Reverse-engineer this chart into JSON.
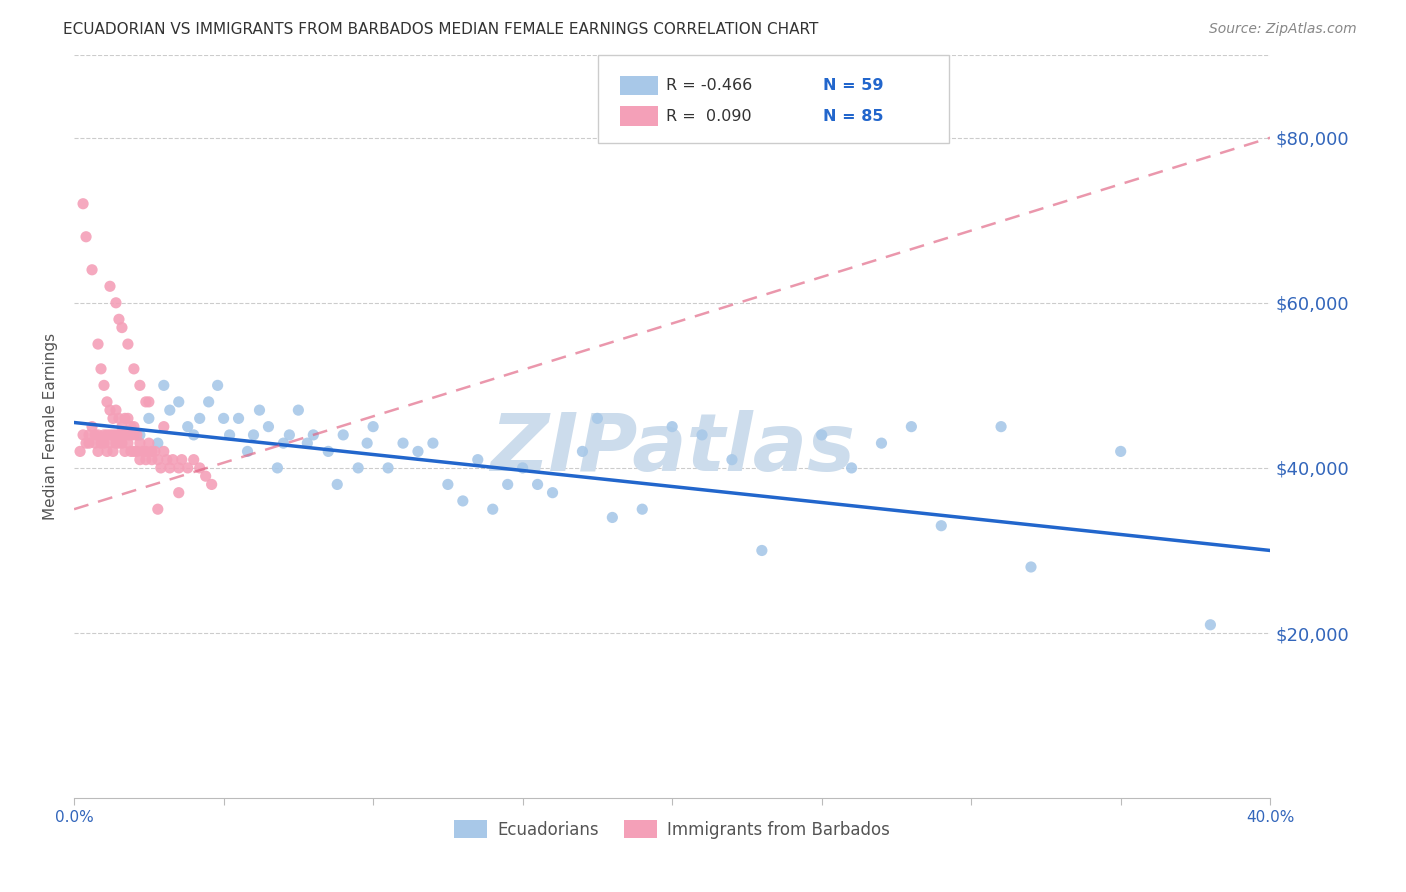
{
  "title": "ECUADORIAN VS IMMIGRANTS FROM BARBADOS MEDIAN FEMALE EARNINGS CORRELATION CHART",
  "source": "Source: ZipAtlas.com",
  "ylabel": "Median Female Earnings",
  "xlim": [
    0.0,
    0.4
  ],
  "ylim": [
    0,
    90000
  ],
  "yticks": [
    20000,
    40000,
    60000,
    80000
  ],
  "ytick_labels": [
    "$20,000",
    "$40,000",
    "$60,000",
    "$80,000"
  ],
  "xticks": [
    0.0,
    0.05,
    0.1,
    0.15,
    0.2,
    0.25,
    0.3,
    0.35,
    0.4
  ],
  "xtick_labels": [
    "0.0%",
    "",
    "",
    "",
    "",
    "",
    "",
    "",
    "40.0%"
  ],
  "blue_color": "#a8c8e8",
  "pink_color": "#f4a0b8",
  "blue_line_color": "#2266cc",
  "pink_line_color": "#e06080",
  "axis_color": "#3366bb",
  "grid_color": "#cccccc",
  "title_color": "#333333",
  "source_color": "#888888",
  "watermark_color": "#ccdcec",
  "legend_r1": "R = -0.466",
  "legend_n1": "N = 59",
  "legend_r2": "R =  0.090",
  "legend_n2": "N = 85",
  "ecuadorians_scatter_x": [
    0.022,
    0.025,
    0.028,
    0.03,
    0.032,
    0.035,
    0.038,
    0.04,
    0.042,
    0.045,
    0.048,
    0.05,
    0.052,
    0.055,
    0.058,
    0.06,
    0.062,
    0.065,
    0.068,
    0.07,
    0.072,
    0.075,
    0.078,
    0.08,
    0.085,
    0.088,
    0.09,
    0.095,
    0.098,
    0.1,
    0.105,
    0.11,
    0.115,
    0.12,
    0.125,
    0.13,
    0.135,
    0.14,
    0.145,
    0.15,
    0.155,
    0.16,
    0.17,
    0.175,
    0.18,
    0.19,
    0.2,
    0.21,
    0.22,
    0.23,
    0.25,
    0.26,
    0.27,
    0.28,
    0.29,
    0.31,
    0.32,
    0.35,
    0.38
  ],
  "ecuadorians_scatter_y": [
    44000,
    46000,
    43000,
    50000,
    47000,
    48000,
    45000,
    44000,
    46000,
    48000,
    50000,
    46000,
    44000,
    46000,
    42000,
    44000,
    47000,
    45000,
    40000,
    43000,
    44000,
    47000,
    43000,
    44000,
    42000,
    38000,
    44000,
    40000,
    43000,
    45000,
    40000,
    43000,
    42000,
    43000,
    38000,
    36000,
    41000,
    35000,
    38000,
    40000,
    38000,
    37000,
    42000,
    46000,
    34000,
    35000,
    45000,
    44000,
    41000,
    30000,
    44000,
    40000,
    43000,
    45000,
    33000,
    45000,
    28000,
    42000,
    21000
  ],
  "barbados_scatter_x": [
    0.002,
    0.003,
    0.004,
    0.005,
    0.005,
    0.006,
    0.007,
    0.007,
    0.008,
    0.008,
    0.009,
    0.01,
    0.01,
    0.011,
    0.011,
    0.012,
    0.012,
    0.013,
    0.013,
    0.014,
    0.014,
    0.015,
    0.015,
    0.016,
    0.016,
    0.017,
    0.017,
    0.018,
    0.018,
    0.019,
    0.019,
    0.02,
    0.02,
    0.021,
    0.021,
    0.022,
    0.022,
    0.023,
    0.024,
    0.024,
    0.025,
    0.026,
    0.026,
    0.027,
    0.028,
    0.029,
    0.03,
    0.031,
    0.032,
    0.033,
    0.035,
    0.036,
    0.038,
    0.04,
    0.042,
    0.044,
    0.046,
    0.01,
    0.011,
    0.012,
    0.013,
    0.014,
    0.015,
    0.016,
    0.017,
    0.018,
    0.019,
    0.02,
    0.008,
    0.009,
    0.015,
    0.018,
    0.022,
    0.025,
    0.03,
    0.012,
    0.014,
    0.016,
    0.02,
    0.024,
    0.003,
    0.004,
    0.006,
    0.035,
    0.028
  ],
  "barbados_scatter_y": [
    42000,
    44000,
    43000,
    44000,
    43000,
    45000,
    44000,
    43000,
    44000,
    42000,
    43000,
    44000,
    43000,
    44000,
    42000,
    44000,
    43000,
    44000,
    42000,
    44000,
    43000,
    44000,
    43000,
    44000,
    43000,
    44000,
    42000,
    44000,
    43000,
    44000,
    42000,
    44000,
    42000,
    44000,
    42000,
    43000,
    41000,
    42000,
    42000,
    41000,
    43000,
    42000,
    41000,
    42000,
    41000,
    40000,
    42000,
    41000,
    40000,
    41000,
    40000,
    41000,
    40000,
    41000,
    40000,
    39000,
    38000,
    50000,
    48000,
    47000,
    46000,
    47000,
    46000,
    45000,
    46000,
    46000,
    45000,
    45000,
    55000,
    52000,
    58000,
    55000,
    50000,
    48000,
    45000,
    62000,
    60000,
    57000,
    52000,
    48000,
    72000,
    68000,
    64000,
    37000,
    35000
  ],
  "blue_line_x0": 0.0,
  "blue_line_y0": 45500,
  "blue_line_x1": 0.4,
  "blue_line_y1": 30000,
  "pink_line_x0": 0.0,
  "pink_line_y0": 35000,
  "pink_line_x1": 0.4,
  "pink_line_y1": 80000
}
